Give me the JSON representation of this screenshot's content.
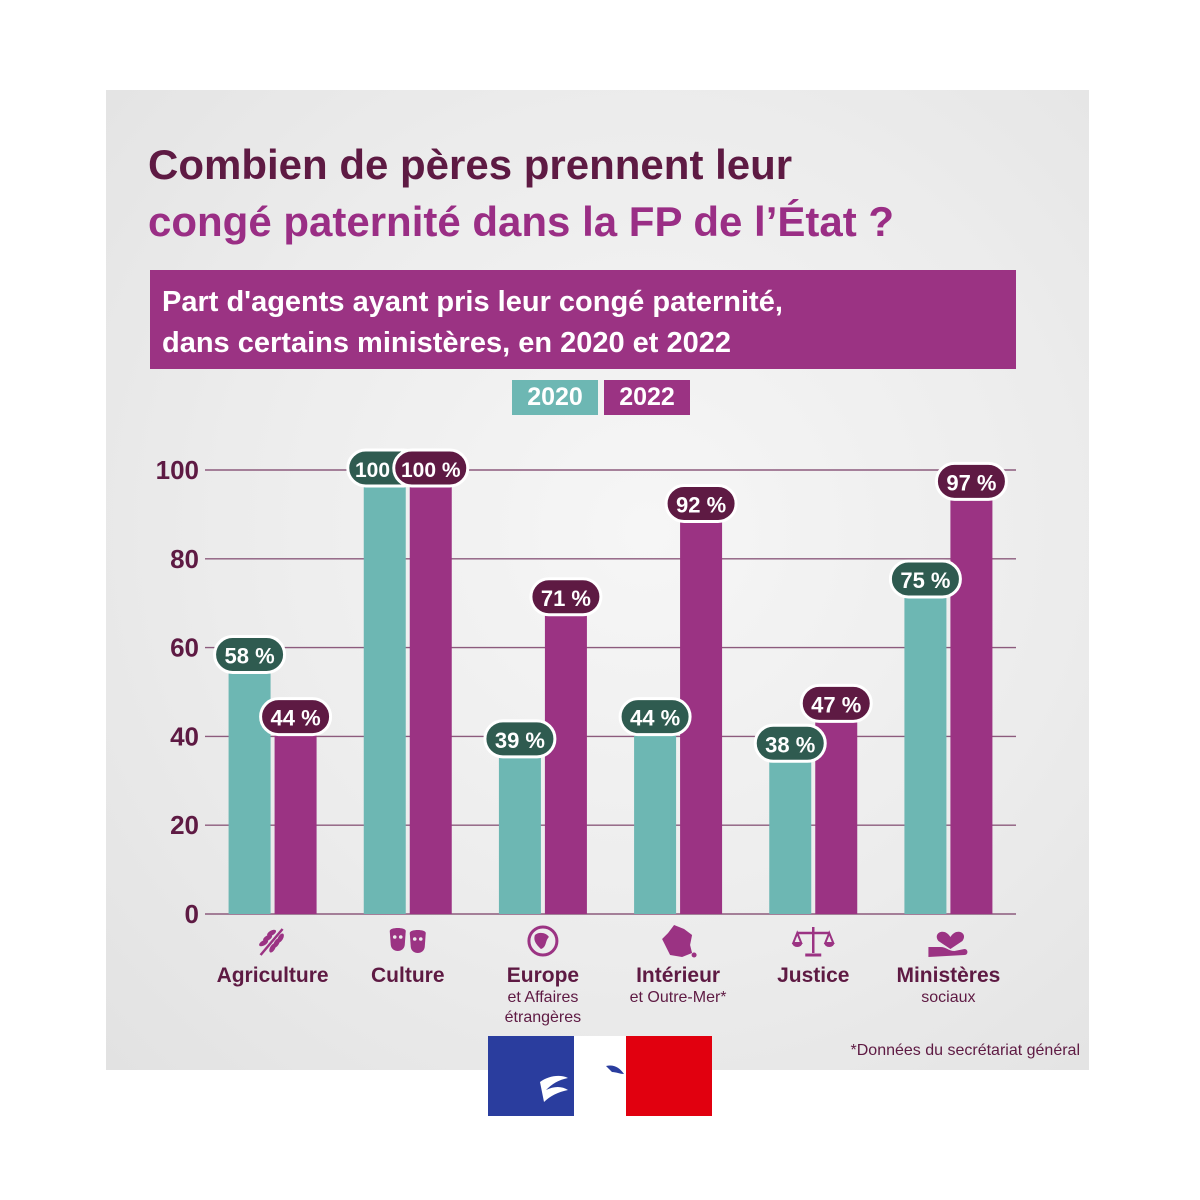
{
  "title": {
    "line1": "Combien de pères prennent leur",
    "line2": "congé paternité dans la FP de l’État ?"
  },
  "subtitle": {
    "line1": "Part d'agents ayant pris leur congé paternité,",
    "line2": "dans certains ministères, en 2020 et 2022"
  },
  "legend": {
    "y2020": "2020",
    "y2022": "2022"
  },
  "colors": {
    "series_2020": "#6db7b3",
    "series_2022": "#9b3383",
    "label_2020_bg": "#2f5b50",
    "label_2022_bg": "#5e1a43",
    "title_dark": "#5e1a43",
    "title_accent": "#9a2e85",
    "axis_text": "#5e1a43"
  },
  "chart_data": {
    "type": "bar",
    "categories": [
      "Agriculture",
      "Culture",
      "Europe",
      "Intérieur",
      "Justice",
      "Ministères"
    ],
    "category_sublabels": [
      [],
      [],
      [
        "et Affaires",
        "étrangères"
      ],
      [
        "et Outre-Mer*"
      ],
      [],
      [
        "sociaux"
      ]
    ],
    "category_icons": [
      "wheat-icon",
      "theater-masks-icon",
      "globe-icon",
      "france-map-icon",
      "scales-icon",
      "heart-hand-icon"
    ],
    "series": [
      {
        "name": "2020",
        "values": [
          58,
          100,
          39,
          44,
          38,
          75
        ],
        "labels": [
          "58 %",
          "100 %",
          "39 %",
          "44 %",
          "38 %",
          "75 %"
        ]
      },
      {
        "name": "2022",
        "values": [
          44,
          100,
          71,
          92,
          47,
          97
        ],
        "labels": [
          "44 %",
          "100 %",
          "71 %",
          "92 %",
          "47 %",
          "97 %"
        ]
      }
    ],
    "ylim": [
      0,
      100
    ],
    "yticks": [
      "0",
      "20",
      "40",
      "60",
      "80",
      "100"
    ],
    "grid": true,
    "legend_position": "top-center"
  },
  "footnote": "*Données du secrétariat général",
  "logo": {
    "name": "Marianne government logo",
    "colors": [
      "#2a3d9e",
      "#ffffff",
      "#e1000f"
    ]
  }
}
